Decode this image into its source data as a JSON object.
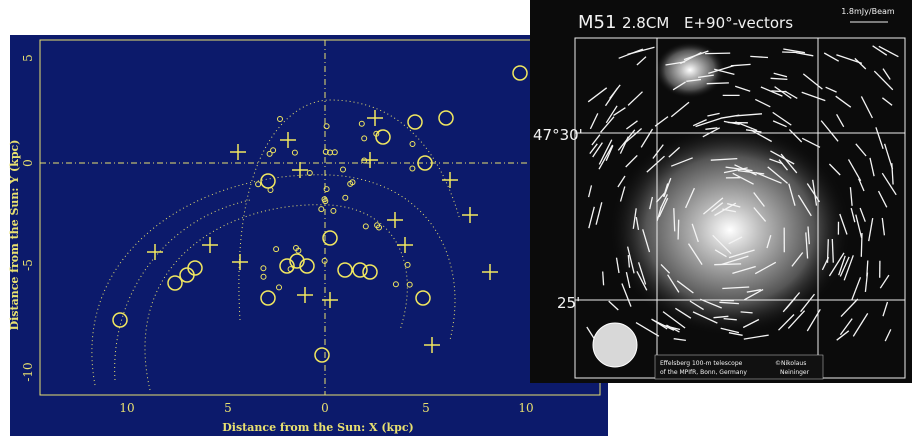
{
  "left_panel": {
    "x_axis_title": "Distance from the Sun: X (kpc)",
    "y_axis_title": "Distance from the Sun: Y (kpc)",
    "x_tick_labels": [
      "10",
      "5",
      "0",
      "5",
      "10"
    ],
    "y_tick_labels": [
      "5",
      "0",
      "-5",
      "-10"
    ]
  },
  "right_panel": {
    "object": "M51",
    "wavelength": "2.8CM",
    "vector_note": "E+90°-vectors",
    "scale_bar": "1.8mJy/Beam",
    "dec_labels": [
      "47°30'",
      "25'"
    ],
    "credit_left": [
      "Effelsberg 100-m telescope",
      "of the MPIfR, Bonn, Germany"
    ],
    "credit_right": [
      "©Nikolaus",
      "Neininger"
    ]
  }
}
